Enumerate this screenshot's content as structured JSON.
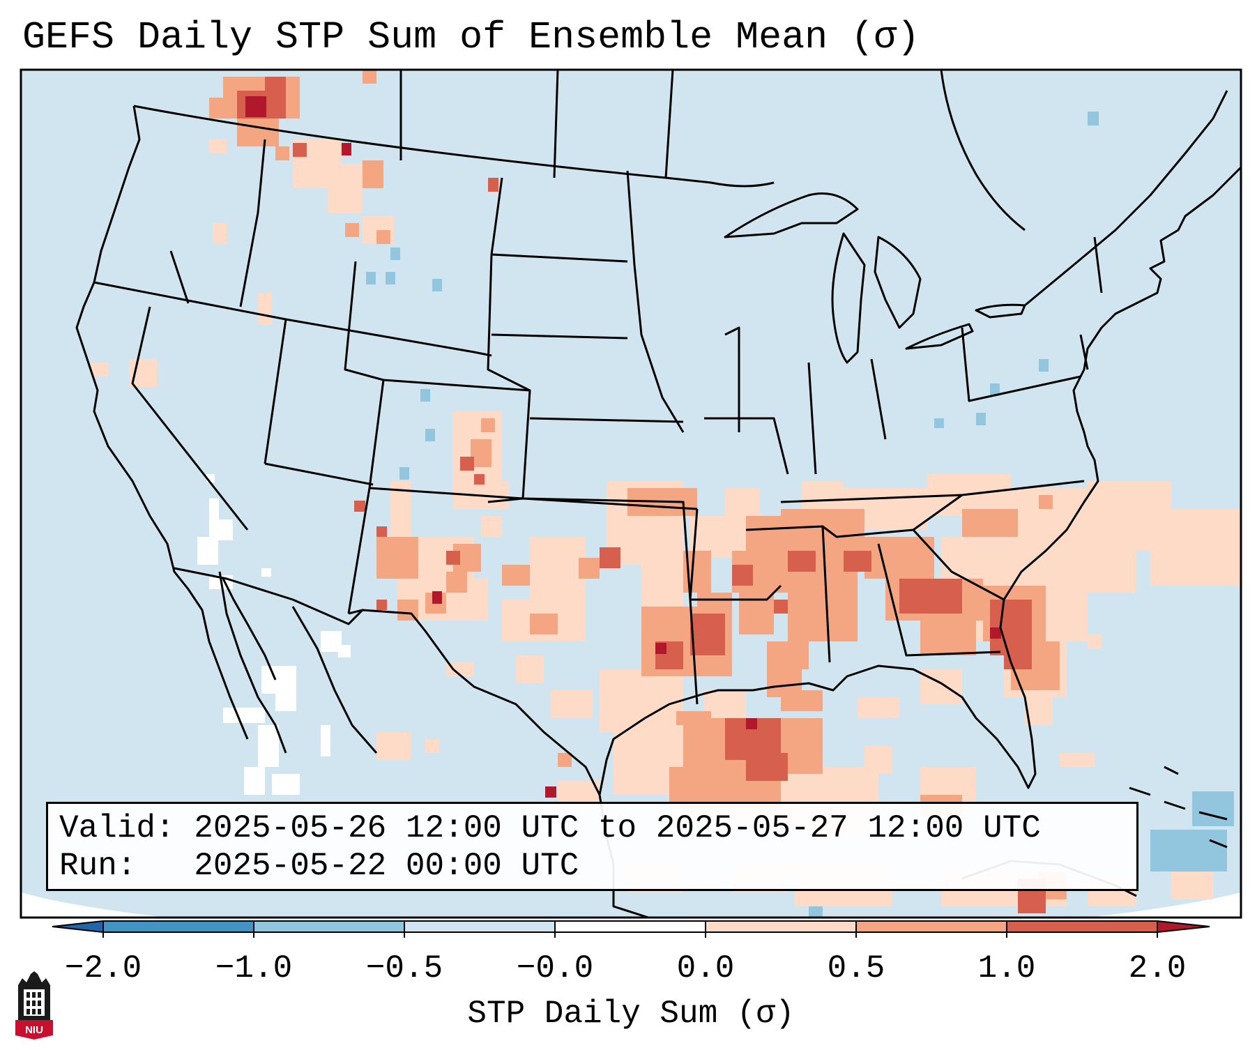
{
  "title": "GEFS Daily STP Sum of Ensemble Mean (σ)",
  "map": {
    "region": "Contiguous United States, northern Mexico, Gulf of Mexico",
    "features": [
      "state-borders",
      "coastlines",
      "great-lakes",
      "gulf-of-mexico",
      "caribbean-islands"
    ]
  },
  "info": {
    "valid_line": "Valid: 2025-05-26 12:00 UTC to 2025-05-27 12:00 UTC",
    "run_line": "Run:   2025-05-22 00:00 UTC"
  },
  "colorbar": {
    "label": "STP Daily Sum (σ)",
    "ticks": [
      "−2.0",
      "−1.0",
      "−0.5",
      "−0.0",
      "0.0",
      "0.5",
      "1.0",
      "2.0"
    ],
    "colors": {
      "under": "#2166ac",
      "neg2": "#4393c3",
      "neg1": "#92c5de",
      "neg05": "#d1e5f0",
      "zero": "#ffffff",
      "pos0": "#fddbc7",
      "pos05": "#f4a582",
      "pos1": "#d6604d",
      "over": "#b2182b"
    }
  },
  "logo": {
    "text": "NIU",
    "icon": "niu-tower-logo-icon",
    "accent": "#c8102e"
  }
}
